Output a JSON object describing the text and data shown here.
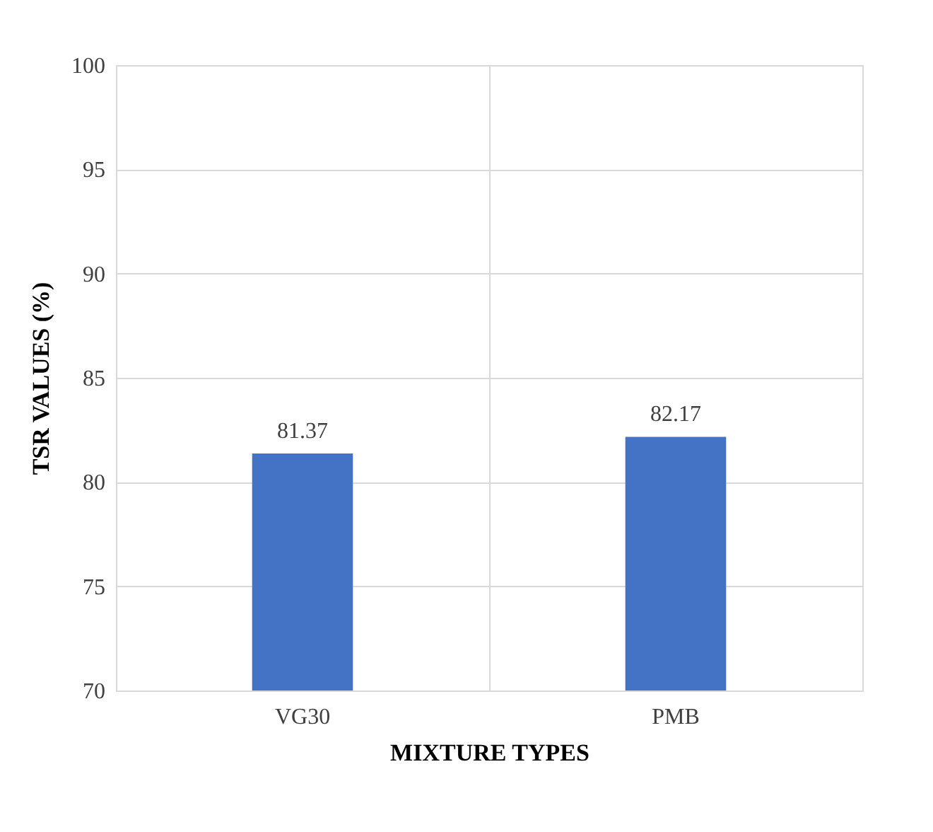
{
  "chart_data": {
    "type": "bar",
    "xlabel": "MIXTURE TYPES",
    "ylabel": "TSR VALUES (%)",
    "categories": [
      "VG30",
      "PMB"
    ],
    "values": [
      81.37,
      82.17
    ],
    "color": "#4472c4",
    "ylim": [
      70,
      100
    ],
    "yticks": [
      70,
      75,
      80,
      85,
      90,
      95,
      100
    ],
    "grid": true,
    "data_labels": true
  }
}
